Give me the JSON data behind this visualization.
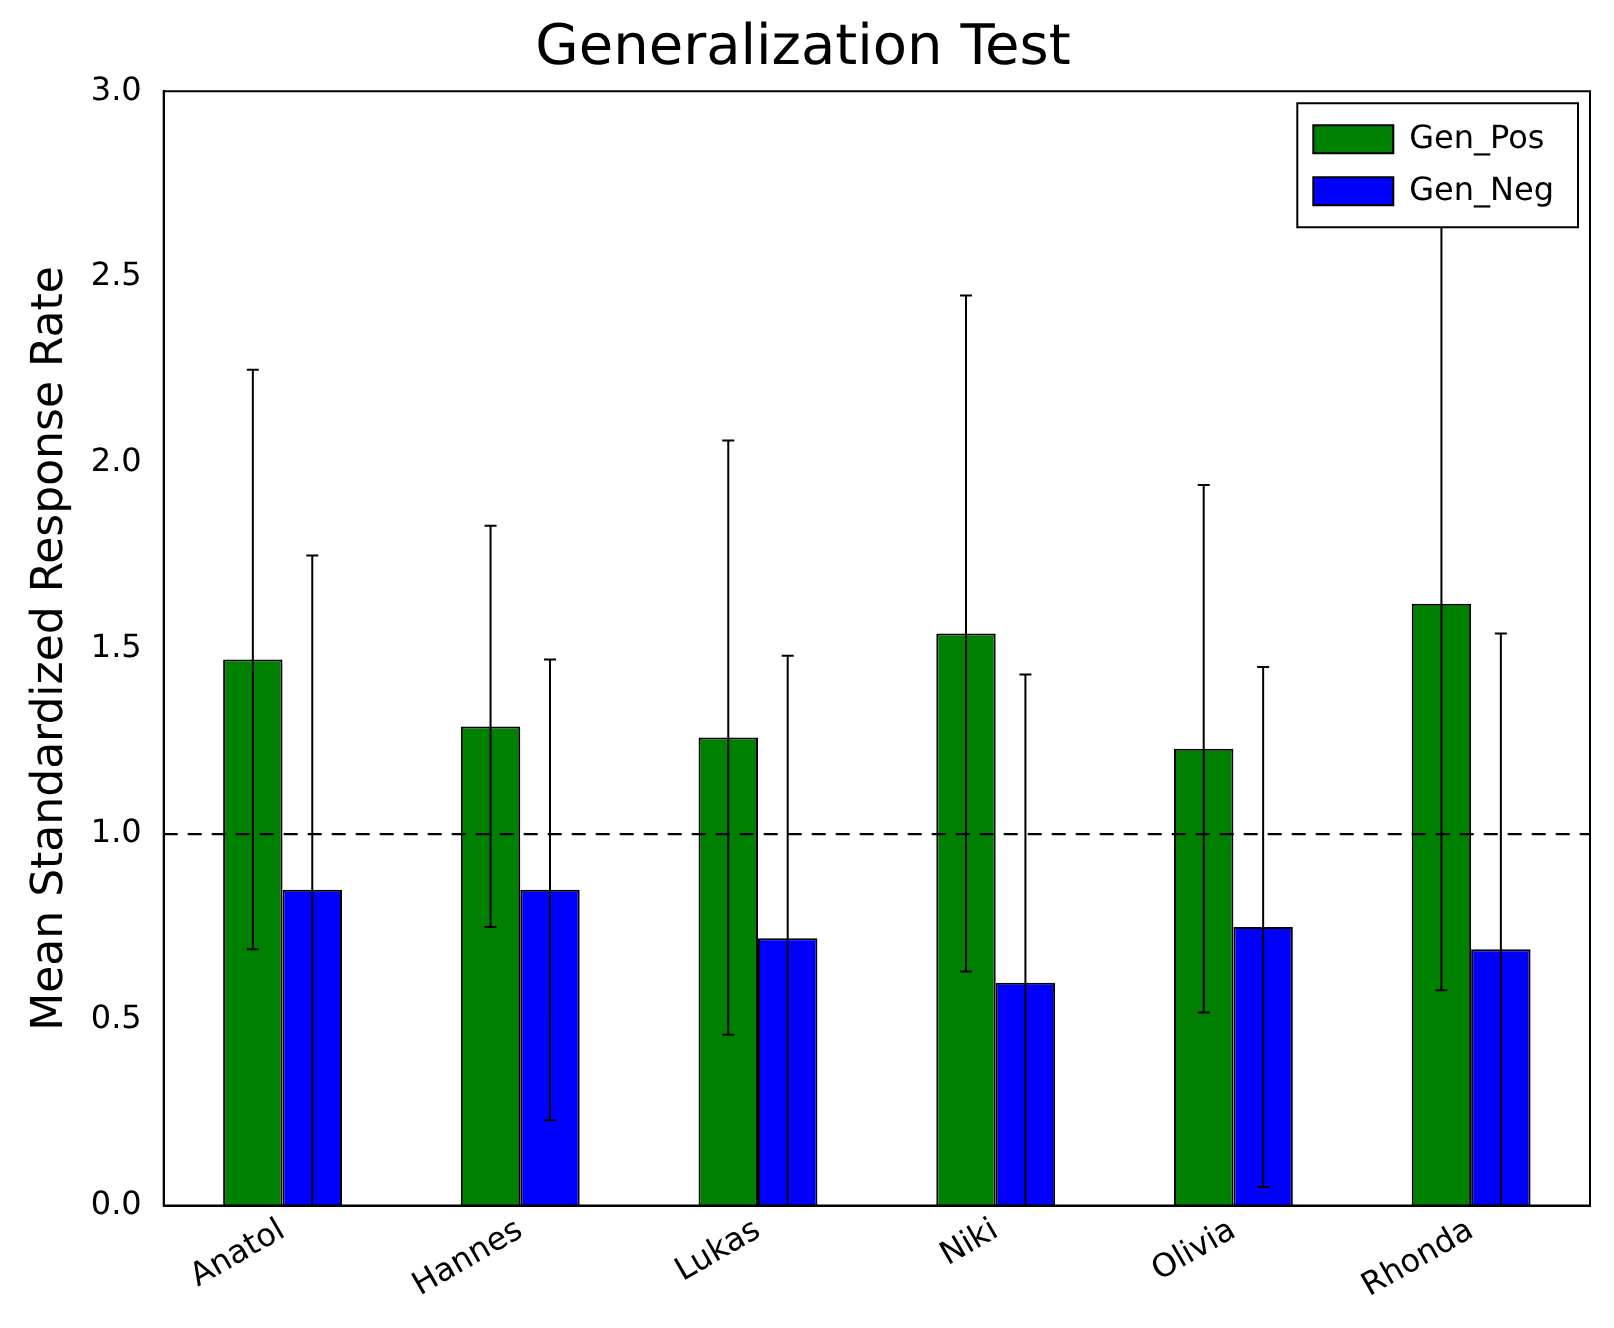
{
  "chart_data": {
    "type": "bar",
    "title": "Generalization Test",
    "ylabel": "Mean Standardized Response Rate",
    "categories": [
      "Anatol",
      "Hannes",
      "Lukas",
      "Niki",
      "Olivia",
      "Rhonda"
    ],
    "series": [
      {
        "name": "Gen_Pos",
        "color": "#008000",
        "values": [
          1.47,
          1.29,
          1.26,
          1.54,
          1.23,
          1.62
        ],
        "errors": [
          0.78,
          0.54,
          0.8,
          0.91,
          0.71,
          1.04
        ]
      },
      {
        "name": "Gen_Neg",
        "color": "#0000ff",
        "values": [
          0.85,
          0.85,
          0.72,
          0.6,
          0.75,
          0.69
        ],
        "errors": [
          0.9,
          0.62,
          0.76,
          0.83,
          0.7,
          0.85
        ]
      }
    ],
    "ylim": [
      0,
      3
    ],
    "yticks": [
      {
        "value": 0,
        "label": "0.0"
      },
      {
        "value": 0.5,
        "label": "0.5"
      },
      {
        "value": 1,
        "label": "1.0"
      },
      {
        "value": 1.5,
        "label": "1.5"
      },
      {
        "value": 2,
        "label": "2.0"
      },
      {
        "value": 2.5,
        "label": "2.5"
      },
      {
        "value": 3,
        "label": "3.0"
      }
    ],
    "ref_lines": [
      {
        "axis": "y",
        "value": 1,
        "color": "#000000",
        "line_style": "dashed"
      }
    ],
    "grid": false,
    "legend": "top right"
  }
}
